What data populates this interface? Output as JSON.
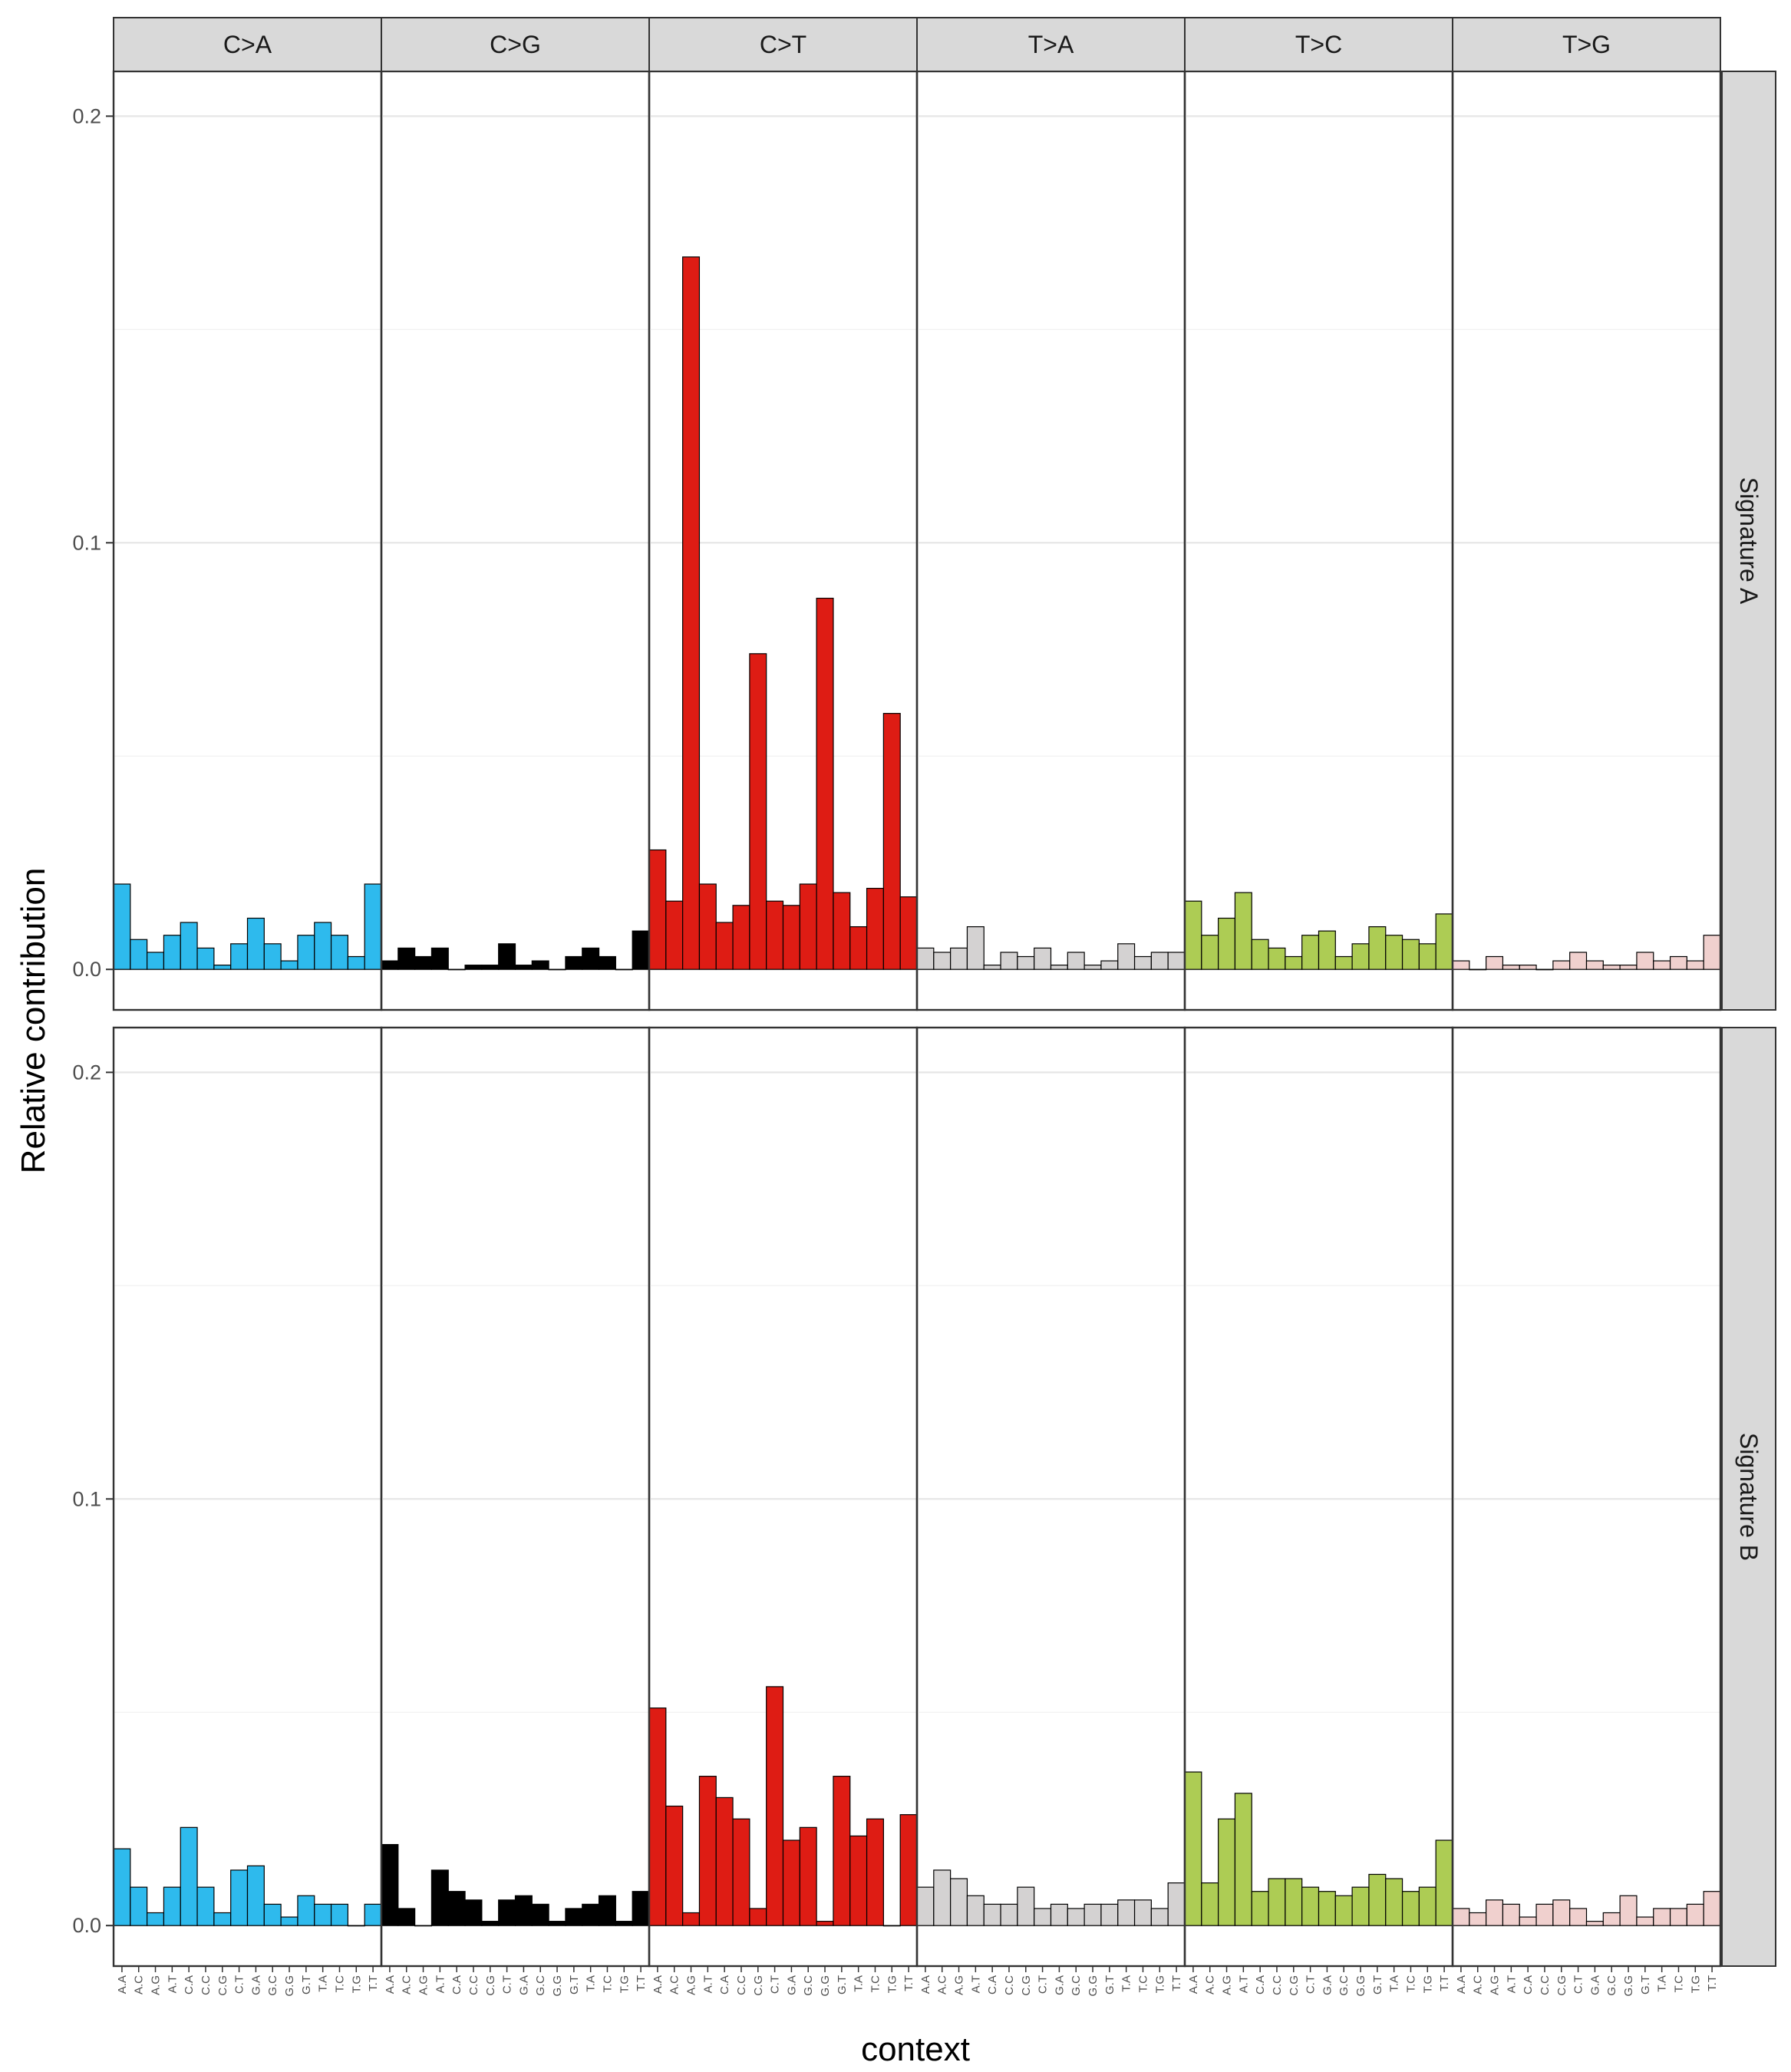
{
  "chart_data": {
    "type": "bar",
    "xlabel": "context",
    "ylabel": "Relative contribution",
    "ylim": [
      -0.0095,
      0.2105
    ],
    "yticks": [
      0.0,
      0.1,
      0.2
    ],
    "ytick_labels": [
      "0.0",
      "0.1",
      "0.2"
    ],
    "grid": true,
    "legend": "none",
    "facet_columns": [
      "C>A",
      "C>G",
      "C>T",
      "T>A",
      "T>C",
      "T>G"
    ],
    "facet_rows": [
      "Signature A",
      "Signature B"
    ],
    "colors": {
      "C>A": "#2ebaed",
      "C>G": "#000000",
      "C>T": "#de1c14",
      "T>A": "#d4d2d2",
      "T>C": "#adcc54",
      "T>G": "#f0d0ce"
    },
    "contexts": [
      "A.A",
      "A.C",
      "A.G",
      "A.T",
      "C.A",
      "C.C",
      "C.G",
      "C.T",
      "G.A",
      "G.C",
      "G.G",
      "G.T",
      "T.A",
      "T.C",
      "T.G",
      "T.T"
    ],
    "series": [
      {
        "name": "Signature A",
        "values": {
          "C>A": [
            0.02,
            0.007,
            0.004,
            0.008,
            0.011,
            0.005,
            0.001,
            0.006,
            0.012,
            0.006,
            0.002,
            0.008,
            0.011,
            0.008,
            0.003,
            0.02
          ],
          "C>G": [
            0.002,
            0.005,
            0.003,
            0.005,
            0.0,
            0.001,
            0.001,
            0.006,
            0.001,
            0.002,
            0.0,
            0.003,
            0.005,
            0.003,
            0.0,
            0.009
          ],
          "C>T": [
            0.028,
            0.016,
            0.167,
            0.02,
            0.011,
            0.015,
            0.074,
            0.016,
            0.015,
            0.02,
            0.087,
            0.018,
            0.01,
            0.019,
            0.06,
            0.017
          ],
          "T>A": [
            0.005,
            0.004,
            0.005,
            0.01,
            0.001,
            0.004,
            0.003,
            0.005,
            0.001,
            0.004,
            0.001,
            0.002,
            0.006,
            0.003,
            0.004,
            0.004
          ],
          "T>C": [
            0.016,
            0.008,
            0.012,
            0.018,
            0.007,
            0.005,
            0.003,
            0.008,
            0.009,
            0.003,
            0.006,
            0.01,
            0.008,
            0.007,
            0.006,
            0.013
          ],
          "T>G": [
            0.002,
            0.0,
            0.003,
            0.001,
            0.001,
            0.0,
            0.002,
            0.004,
            0.002,
            0.001,
            0.001,
            0.004,
            0.002,
            0.003,
            0.002,
            0.008
          ]
        }
      },
      {
        "name": "Signature B",
        "values": {
          "C>A": [
            0.018,
            0.009,
            0.003,
            0.009,
            0.023,
            0.009,
            0.003,
            0.013,
            0.014,
            0.005,
            0.002,
            0.007,
            0.005,
            0.005,
            0.0,
            0.005
          ],
          "C>G": [
            0.019,
            0.004,
            0.0,
            0.013,
            0.008,
            0.006,
            0.001,
            0.006,
            0.007,
            0.005,
            0.001,
            0.004,
            0.005,
            0.007,
            0.001,
            0.008
          ],
          "C>T": [
            0.051,
            0.028,
            0.003,
            0.035,
            0.03,
            0.025,
            0.004,
            0.056,
            0.02,
            0.023,
            0.001,
            0.035,
            0.021,
            0.025,
            0.0,
            0.026
          ],
          "T>A": [
            0.009,
            0.013,
            0.011,
            0.007,
            0.005,
            0.005,
            0.009,
            0.004,
            0.005,
            0.004,
            0.005,
            0.005,
            0.006,
            0.006,
            0.004,
            0.01
          ],
          "T>C": [
            0.036,
            0.01,
            0.025,
            0.031,
            0.008,
            0.011,
            0.011,
            0.009,
            0.008,
            0.007,
            0.009,
            0.012,
            0.011,
            0.008,
            0.009,
            0.02
          ],
          "T>G": [
            0.004,
            0.003,
            0.006,
            0.005,
            0.002,
            0.005,
            0.006,
            0.004,
            0.001,
            0.003,
            0.007,
            0.002,
            0.004,
            0.004,
            0.005,
            0.008
          ]
        }
      }
    ]
  }
}
